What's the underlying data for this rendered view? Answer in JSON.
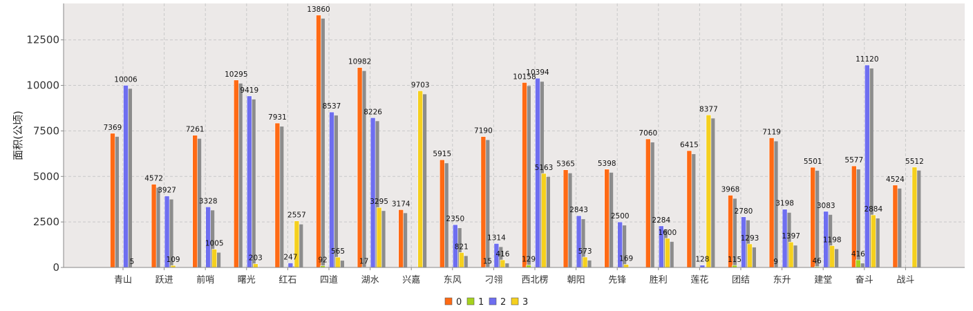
{
  "chart_data": {
    "type": "bar",
    "ylabel": "面积(公顷)",
    "xlabel": "",
    "ylim": [
      0,
      14500
    ],
    "yticks": [
      0,
      2500,
      5000,
      7500,
      10000,
      12500
    ],
    "grid": true,
    "legend_position": "bottom-center",
    "categories": [
      "青山",
      "跃进",
      "前哨",
      "曙光",
      "红石",
      "四道",
      "湖水",
      "兴嘉",
      "东风",
      "刁翎",
      "西北楞",
      "朝阳",
      "先锋",
      "胜利",
      "莲花",
      "团结",
      "东升",
      "建堂",
      "奋斗",
      "战斗"
    ],
    "series": [
      {
        "name": "0",
        "color": "#ff6a14",
        "values": [
          7369,
          4572,
          7261,
          10295,
          7931,
          13860,
          10982,
          3174,
          5915,
          7190,
          10158,
          5365,
          5398,
          7060,
          6415,
          3968,
          7119,
          5501,
          5577,
          4524
        ],
        "labels": [
          "7369",
          "4572",
          "7261",
          "10295",
          "7931",
          "13860",
          "10982",
          "3174",
          "5915",
          "7190",
          "10158",
          "5365",
          "5398",
          "7060",
          "6415",
          "3968",
          "7119",
          "5501",
          "5577",
          "4524"
        ]
      },
      {
        "name": "1",
        "color": "#a6d21e",
        "values": [
          null,
          null,
          null,
          null,
          null,
          92,
          17,
          null,
          null,
          15,
          129,
          null,
          null,
          null,
          null,
          115,
          9,
          46,
          416,
          null
        ],
        "labels": [
          null,
          null,
          null,
          null,
          null,
          "92",
          "17",
          null,
          null,
          "15",
          "129",
          null,
          null,
          null,
          null,
          "115",
          "9",
          "46",
          "416",
          null
        ]
      },
      {
        "name": "2",
        "color": "#6e6ef0",
        "values": [
          10006,
          3927,
          3328,
          9419,
          247,
          8537,
          8226,
          null,
          2350,
          1314,
          10394,
          2843,
          2500,
          2284,
          128,
          2780,
          3198,
          3083,
          11120,
          null
        ],
        "labels": [
          "10006",
          "3927",
          "3328",
          "9419",
          "247",
          "8537",
          "8226",
          null,
          "2350",
          "1314",
          "10394",
          "2843",
          "2500",
          "2284",
          "128",
          "2780",
          "3198",
          "3083",
          "11120",
          null
        ]
      },
      {
        "name": "3",
        "color": "#f5d01e",
        "values": [
          5,
          109,
          1005,
          203,
          2557,
          565,
          3295,
          9703,
          821,
          416,
          5163,
          573,
          169,
          1600,
          8377,
          1293,
          1397,
          1198,
          2884,
          5512
        ],
        "labels": [
          "5",
          "109",
          "1005",
          "203",
          "2557",
          "565",
          "3295",
          "9703",
          "821",
          "416",
          "5163",
          "573",
          "169",
          "1600",
          "8377",
          "1293",
          "1397",
          "1198",
          "2884",
          "5512"
        ]
      }
    ]
  }
}
